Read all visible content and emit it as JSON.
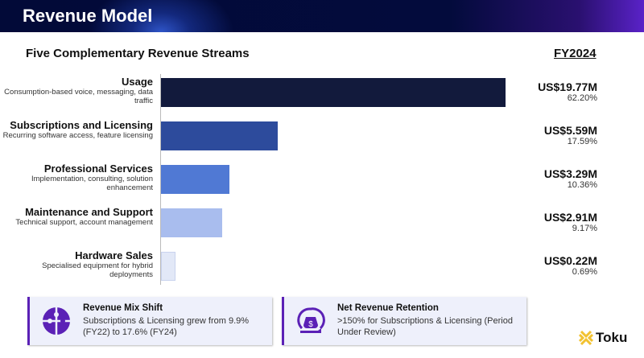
{
  "header": {
    "title": "Revenue Model"
  },
  "chart_data": {
    "type": "bar",
    "orientation": "horizontal",
    "title": "Five Complementary Revenue Streams",
    "period": "FY2024",
    "unit": "US$M",
    "categories": [
      "Usage",
      "Subscriptions and Licensing",
      "Professional Services",
      "Maintenance and Support",
      "Hardware Sales"
    ],
    "descriptions": [
      "Consumption-based voice, messaging, data traffic",
      "Recurring software access, feature licensing",
      "Implementation, consulting, solution enhancement",
      "Technical support, account management",
      "Specialised equipment for hybrid deployments"
    ],
    "values": [
      19.77,
      5.59,
      3.29,
      2.91,
      0.22
    ],
    "value_labels": [
      "US$19.77M",
      "US$5.59M",
      "US$3.29M",
      "US$2.91M",
      "US$0.22M"
    ],
    "percent_labels": [
      "62.20%",
      "17.59%",
      "10.36%",
      "9.17%",
      "0.69%"
    ],
    "colors": [
      "#121a3c",
      "#2d4b9c",
      "#5079d4",
      "#a9bdee",
      "#e2e8f7"
    ]
  },
  "cards": [
    {
      "title": "Revenue Mix Shift",
      "body": "Subscriptions & Licensing grew from 9.9% (FY22) to 17.6% (FY24)",
      "icon": "puzzle-icon"
    },
    {
      "title": "Net Revenue Retention",
      "body": ">150% for Subscriptions & Licensing (Period Under Review)",
      "icon": "money-bag-hand-icon"
    }
  ],
  "logo": {
    "text": "Toku",
    "color": "#f2c230"
  },
  "accent": "#5b21b6"
}
